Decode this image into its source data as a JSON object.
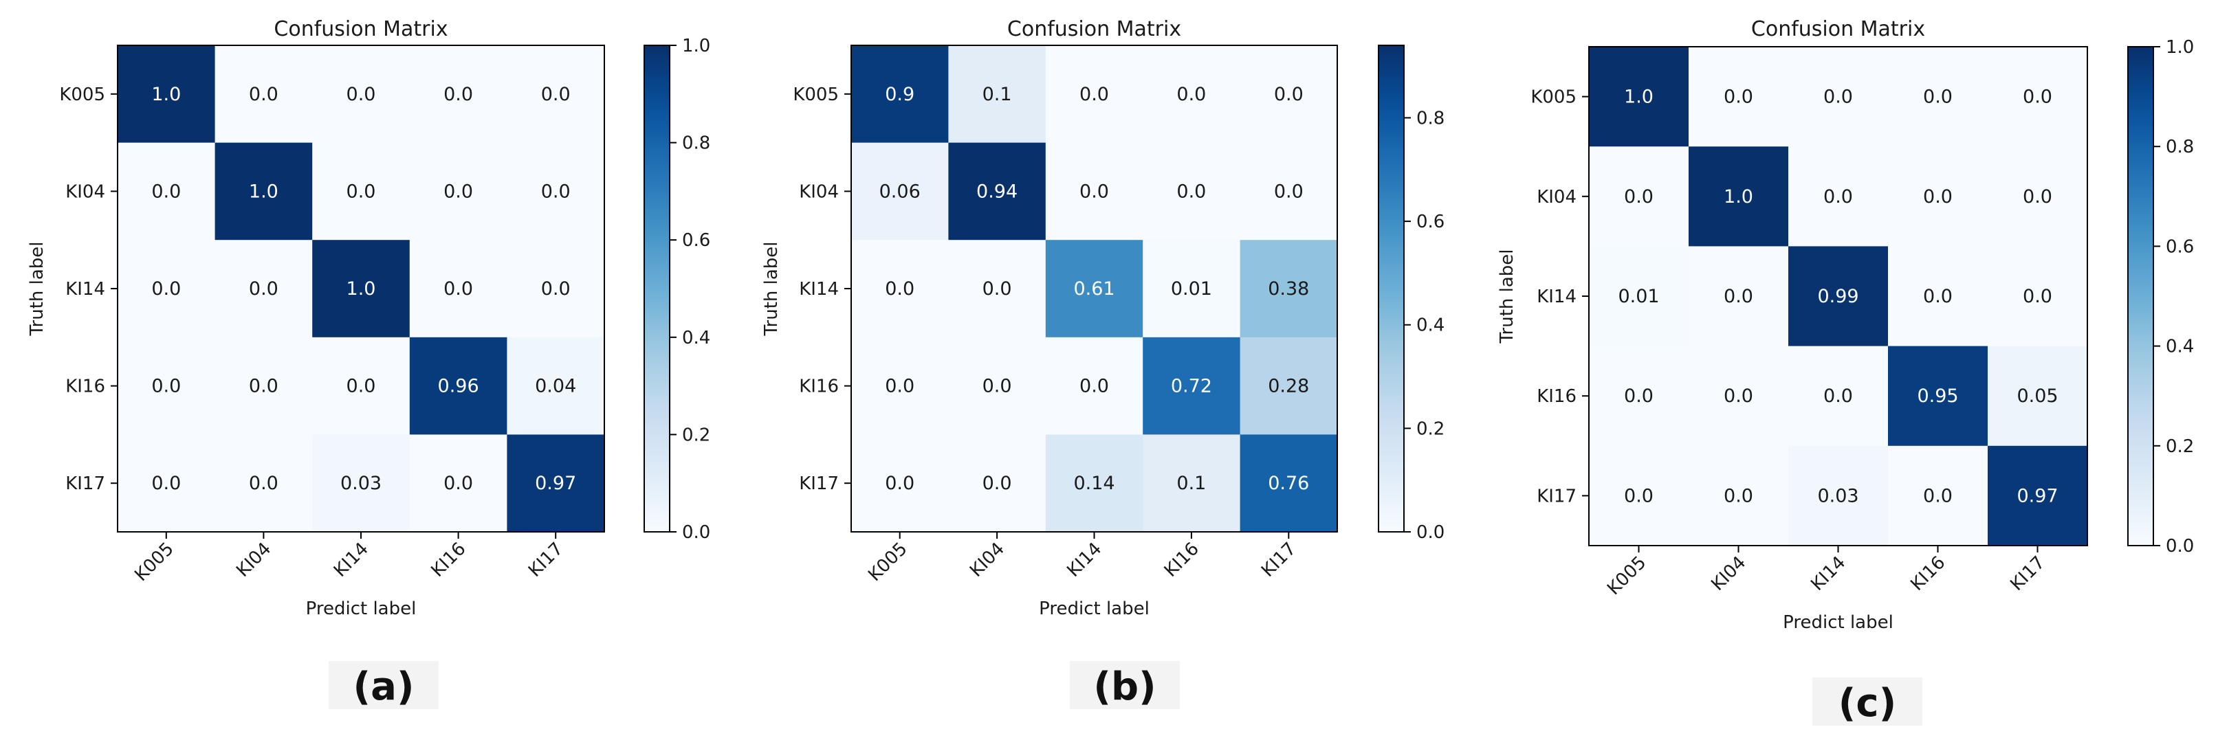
{
  "chart_data": [
    {
      "type": "heatmap",
      "title": "Confusion Matrix",
      "xlabel": "Predict label",
      "ylabel": "Truth label",
      "x_categories": [
        "K005",
        "KI04",
        "KI14",
        "KI16",
        "KI17"
      ],
      "y_categories": [
        "K005",
        "KI04",
        "KI14",
        "KI16",
        "KI17"
      ],
      "values": [
        [
          "1.0",
          "0.0",
          "0.0",
          "0.0",
          "0.0"
        ],
        [
          "0.0",
          "1.0",
          "0.0",
          "0.0",
          "0.0"
        ],
        [
          "0.0",
          "0.0",
          "1.0",
          "0.0",
          "0.0"
        ],
        [
          "0.0",
          "0.0",
          "0.0",
          "0.96",
          "0.04"
        ],
        [
          "0.0",
          "0.0",
          "0.03",
          "0.0",
          "0.97"
        ]
      ],
      "colorbar": {
        "min": 0.0,
        "max": 1.0,
        "ticks": [
          "0.0",
          "0.2",
          "0.4",
          "0.6",
          "0.8",
          "1.0"
        ]
      },
      "colormap": "Blues",
      "panel_label": "(a)"
    },
    {
      "type": "heatmap",
      "title": "Confusion Matrix",
      "xlabel": "Predict label",
      "ylabel": "Truth label",
      "x_categories": [
        "K005",
        "KI04",
        "KI14",
        "KI16",
        "KI17"
      ],
      "y_categories": [
        "K005",
        "KI04",
        "KI14",
        "KI16",
        "KI17"
      ],
      "values": [
        [
          "0.9",
          "0.1",
          "0.0",
          "0.0",
          "0.0"
        ],
        [
          "0.06",
          "0.94",
          "0.0",
          "0.0",
          "0.0"
        ],
        [
          "0.0",
          "0.0",
          "0.61",
          "0.01",
          "0.38"
        ],
        [
          "0.0",
          "0.0",
          "0.0",
          "0.72",
          "0.28"
        ],
        [
          "0.0",
          "0.0",
          "0.14",
          "0.1",
          "0.76"
        ]
      ],
      "colorbar": {
        "min": 0.0,
        "max": 0.94,
        "ticks": [
          "0.0",
          "0.2",
          "0.4",
          "0.6",
          "0.8"
        ]
      },
      "colormap": "Blues",
      "panel_label": "(b)"
    },
    {
      "type": "heatmap",
      "title": "Confusion Matrix",
      "xlabel": "Predict label",
      "ylabel": "Truth label",
      "x_categories": [
        "K005",
        "KI04",
        "KI14",
        "KI16",
        "KI17"
      ],
      "y_categories": [
        "K005",
        "KI04",
        "KI14",
        "KI16",
        "KI17"
      ],
      "values": [
        [
          "1.0",
          "0.0",
          "0.0",
          "0.0",
          "0.0"
        ],
        [
          "0.0",
          "1.0",
          "0.0",
          "0.0",
          "0.0"
        ],
        [
          "0.01",
          "0.0",
          "0.99",
          "0.0",
          "0.0"
        ],
        [
          "0.0",
          "0.0",
          "0.0",
          "0.95",
          "0.05"
        ],
        [
          "0.0",
          "0.0",
          "0.03",
          "0.0",
          "0.97"
        ]
      ],
      "colorbar": {
        "min": 0.0,
        "max": 1.0,
        "ticks": [
          "0.0",
          "0.2",
          "0.4",
          "0.6",
          "0.8",
          "1.0"
        ]
      },
      "colormap": "Blues",
      "panel_label": "(c)"
    }
  ]
}
